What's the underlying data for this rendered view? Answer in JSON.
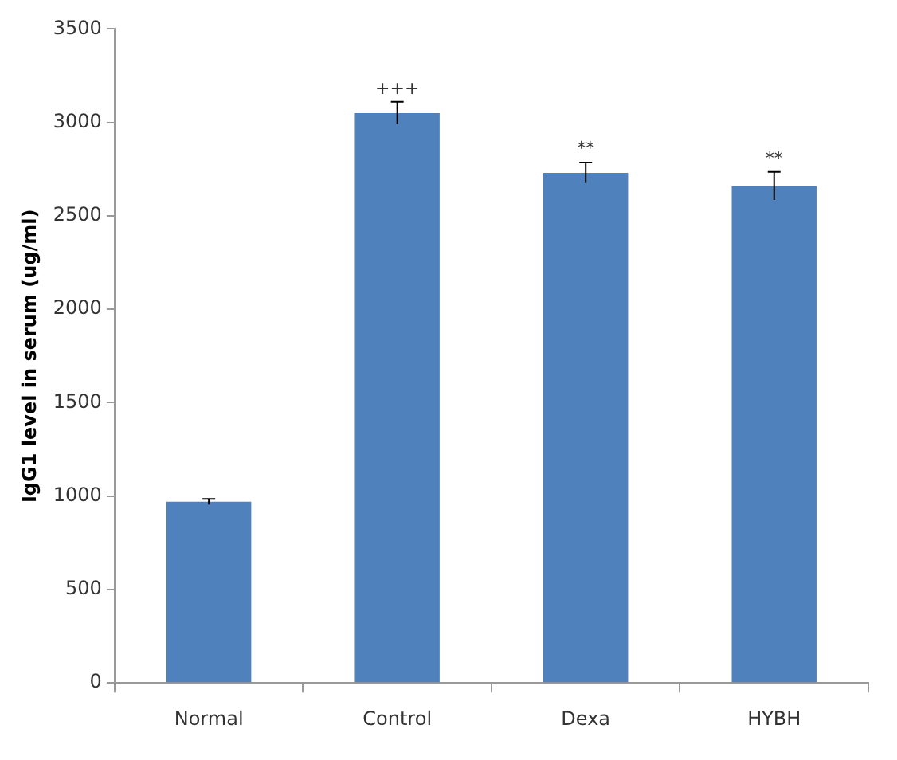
{
  "chart_data": {
    "type": "bar",
    "ylabel": "IgG1 level in serum (ug/ml)",
    "categories": [
      "Normal",
      "Control",
      "Dexa",
      "HYBH"
    ],
    "values": [
      970,
      3050,
      2730,
      2660
    ],
    "errors": [
      15,
      60,
      55,
      75
    ],
    "color": "#4f81bd",
    "ylim": [
      0,
      3500
    ],
    "yticks": [
      0,
      500,
      1000,
      1500,
      2000,
      2500,
      3000,
      3500
    ],
    "grid": false,
    "legend": false,
    "annotations": [
      {
        "text": "+++",
        "x": "Control",
        "y": 3105
      },
      {
        "text": "**",
        "x": "Dexa",
        "y": 2785
      },
      {
        "text": "**",
        "x": "HYBH",
        "y": 2730
      }
    ]
  }
}
